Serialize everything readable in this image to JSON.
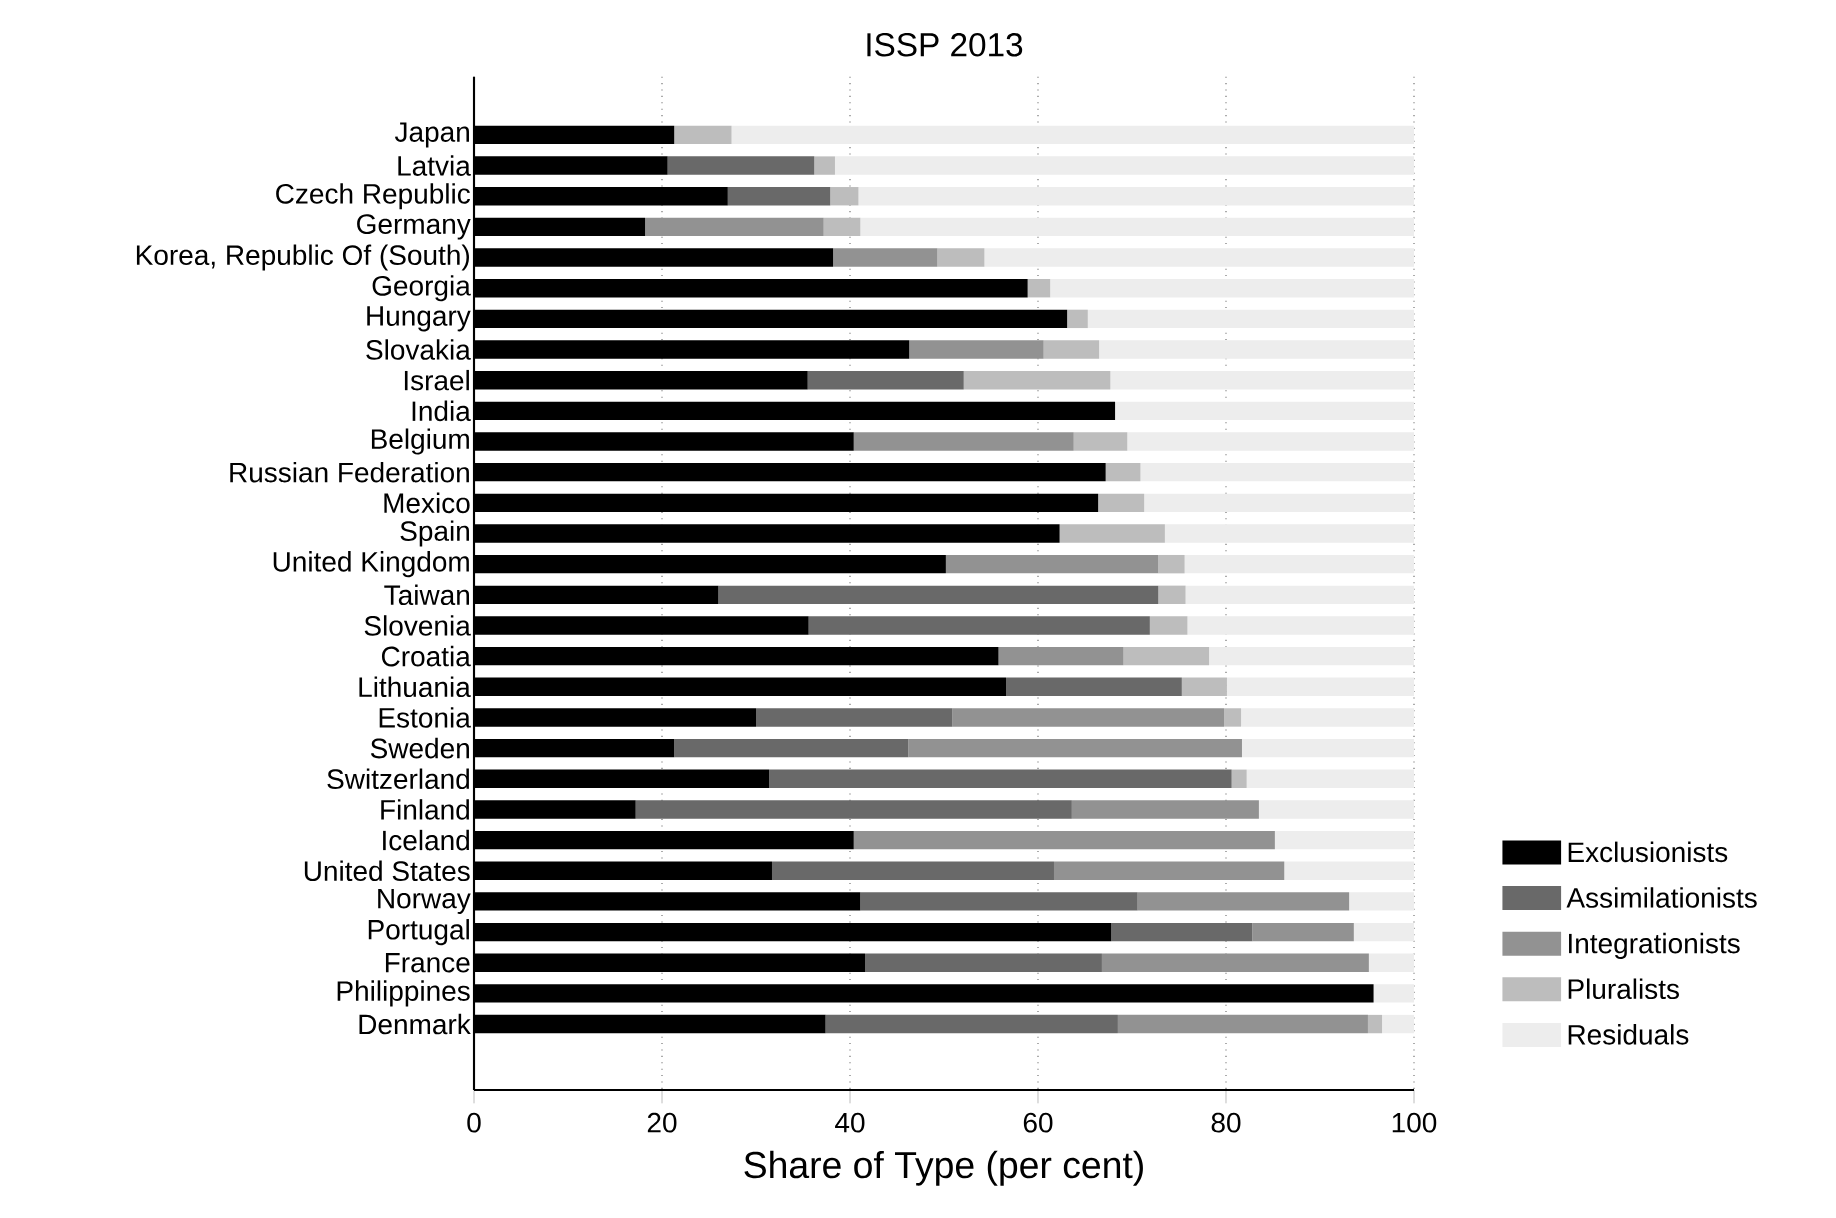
{
  "chart_data": {
    "type": "bar",
    "orientation": "horizontal",
    "stacked": true,
    "title": "ISSP 2013",
    "xlabel": "Share of Type (per cent)",
    "categories": [
      "Japan",
      "Latvia",
      "Czech Republic",
      "Germany",
      "Korea, Republic Of (South)",
      "Georgia",
      "Hungary",
      "Slovakia",
      "Israel",
      "India",
      "Belgium",
      "Russian Federation",
      "Mexico",
      "Spain",
      "United Kingdom",
      "Taiwan",
      "Slovenia",
      "Croatia",
      "Lithuania",
      "Estonia",
      "Sweden",
      "Switzerland",
      "Finland",
      "Iceland",
      "United States",
      "Norway",
      "Portugal",
      "France",
      "Philippines",
      "Denmark"
    ],
    "series": [
      {
        "name": "Exclusionists",
        "color": "#000000",
        "values": [
          21.3,
          20.6,
          27.0,
          18.2,
          38.2,
          58.9,
          63.1,
          46.3,
          35.5,
          68.2,
          40.4,
          67.2,
          66.4,
          62.3,
          50.2,
          26.0,
          35.6,
          55.8,
          56.6,
          30.0,
          21.3,
          31.4,
          17.2,
          40.4,
          31.7,
          41.1,
          67.8,
          41.6,
          95.7,
          37.4
        ]
      },
      {
        "name": "Assimilationists",
        "color": "#696969",
        "values": [
          0,
          15.6,
          10.9,
          0,
          0,
          0,
          0,
          0,
          16.6,
          0,
          0,
          0,
          0,
          0,
          0,
          46.8,
          36.3,
          0,
          18.7,
          20.9,
          24.9,
          49.2,
          46.4,
          0,
          30.0,
          29.5,
          15.0,
          25.2,
          0,
          31.1
        ]
      },
      {
        "name": "Integrationists",
        "color": "#929292",
        "values": [
          0,
          0,
          0,
          19.0,
          11.1,
          0,
          0,
          14.3,
          0,
          0,
          23.4,
          0,
          0,
          0,
          22.6,
          0,
          0,
          13.3,
          0,
          28.9,
          35.5,
          0,
          19.9,
          44.8,
          24.5,
          22.5,
          10.8,
          28.4,
          0,
          26.6
        ]
      },
      {
        "name": "Pluralists",
        "color": "#bdbdbd",
        "values": [
          6.1,
          2.2,
          3.0,
          3.9,
          5.0,
          2.4,
          2.2,
          5.9,
          15.6,
          0,
          5.7,
          3.7,
          4.9,
          11.2,
          2.8,
          2.9,
          4.0,
          9.1,
          4.8,
          1.8,
          0,
          1.6,
          0,
          0,
          0,
          0,
          0,
          0,
          0,
          1.5
        ]
      },
      {
        "name": "Residuals",
        "color": "#ededed",
        "values": [
          72.6,
          61.6,
          59.1,
          58.9,
          45.7,
          38.7,
          34.7,
          33.5,
          32.3,
          31.8,
          30.5,
          29.1,
          28.7,
          26.5,
          24.4,
          24.3,
          24.1,
          21.8,
          19.9,
          18.4,
          18.3,
          17.8,
          16.5,
          14.8,
          13.8,
          6.9,
          6.4,
          4.8,
          4.3,
          3.4
        ]
      }
    ],
    "xlim": [
      0,
      100
    ],
    "xticks": [
      0,
      20,
      40,
      60,
      80,
      100
    ],
    "grid": "x",
    "legend": "right"
  }
}
